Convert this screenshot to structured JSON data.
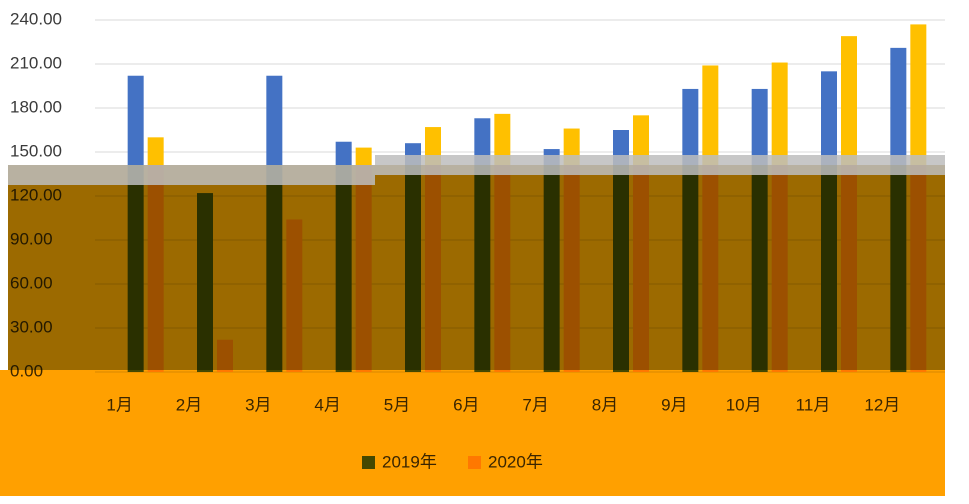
{
  "chart_data": {
    "type": "bar",
    "categories": [
      "1月",
      "2月",
      "3月",
      "4月",
      "5月",
      "6月",
      "7月",
      "8月",
      "9月",
      "10月",
      "11月",
      "12月"
    ],
    "series": [
      {
        "name": "2019年",
        "color": "#4472c4",
        "values": [
          202,
          122,
          202,
          157,
          156,
          173,
          152,
          165,
          193,
          193,
          205,
          221
        ]
      },
      {
        "name": "2020年",
        "color": "#ffc000",
        "values": [
          160,
          22,
          104,
          153,
          167,
          176,
          166,
          175,
          209,
          211,
          229,
          237
        ]
      }
    ],
    "ylim": [
      0,
      240
    ],
    "yticks": [
      {
        "value": 0,
        "label": "0.00"
      },
      {
        "value": 30,
        "label": "30.00"
      },
      {
        "value": 60,
        "label": "60.00"
      },
      {
        "value": 90,
        "label": "90.00"
      },
      {
        "value": 120,
        "label": "120.00"
      },
      {
        "value": 150,
        "label": "150.00"
      },
      {
        "value": 180,
        "label": "180.00"
      },
      {
        "value": 210,
        "label": "210.00"
      },
      {
        "value": 240,
        "label": "240.00"
      }
    ],
    "grid": true,
    "legend": "bottom"
  }
}
